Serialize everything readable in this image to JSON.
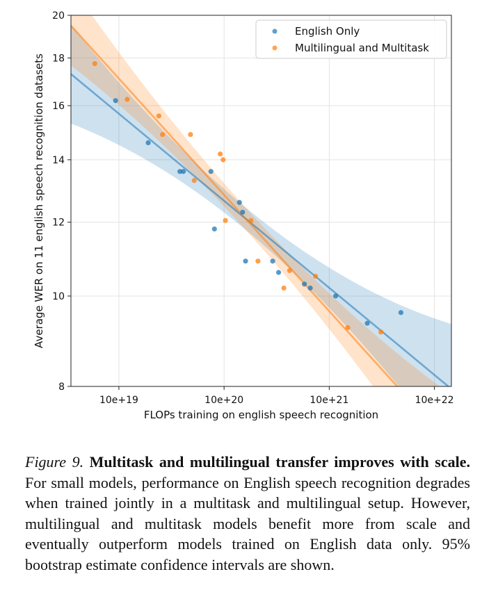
{
  "chart_data": {
    "type": "scatter",
    "title": "",
    "xlabel": "FLOPs training on english speech recognition",
    "ylabel": "Average WER on 11 english speech recognition datasets",
    "x_scale": "log",
    "y_scale": "log",
    "xlim": [
      3.5e+18,
      1.45e+22
    ],
    "ylim": [
      8,
      20
    ],
    "x_ticks": [
      {
        "value": 1e+19,
        "label": "10e+19"
      },
      {
        "value": 1e+20,
        "label": "10e+20"
      },
      {
        "value": 1e+21,
        "label": "10e+21"
      },
      {
        "value": 1e+22,
        "label": "10e+22"
      }
    ],
    "y_ticks": [
      {
        "value": 8,
        "label": "8"
      },
      {
        "value": 10,
        "label": "10"
      },
      {
        "value": 12,
        "label": "12"
      },
      {
        "value": 14,
        "label": "14"
      },
      {
        "value": 16,
        "label": "16"
      },
      {
        "value": 18,
        "label": "18"
      },
      {
        "value": 20,
        "label": "20"
      }
    ],
    "grid": true,
    "legend_position": "top-right",
    "series": [
      {
        "name": "English Only",
        "color": "#1f77b4",
        "points": [
          [
            9.3e+18,
            16.2
          ],
          [
            1.9e+19,
            14.6
          ],
          [
            3.8e+19,
            13.6
          ],
          [
            4.1e+19,
            13.6
          ],
          [
            7.5e+19,
            13.6
          ],
          [
            8.1e+19,
            11.8
          ],
          [
            1.4e+20,
            12.6
          ],
          [
            1.5e+20,
            12.3
          ],
          [
            1.6e+20,
            10.9
          ],
          [
            2.9e+20,
            10.9
          ],
          [
            3.3e+20,
            10.6
          ],
          [
            5.8e+20,
            10.3
          ],
          [
            6.6e+20,
            10.2
          ],
          [
            1.15e+21,
            10.0
          ],
          [
            2.3e+21,
            9.35
          ],
          [
            4.8e+21,
            9.6
          ]
        ],
        "fit": {
          "start": [
            3.5e+18,
            17.3
          ],
          "end": [
            1.45e+22,
            7.95
          ]
        }
      },
      {
        "name": "Multilingual and Multitask",
        "color": "#ff7f0e",
        "points": [
          [
            5.9e+18,
            17.75
          ],
          [
            1.2e+19,
            16.25
          ],
          [
            2.4e+19,
            15.6
          ],
          [
            2.6e+19,
            14.9
          ],
          [
            4.8e+19,
            14.9
          ],
          [
            5.2e+19,
            13.3
          ],
          [
            9.2e+19,
            14.2
          ],
          [
            9.8e+19,
            14.0
          ],
          [
            1.03e+20,
            12.05
          ],
          [
            1.8e+20,
            12.05
          ],
          [
            2.1e+20,
            10.9
          ],
          [
            3.7e+20,
            10.2
          ],
          [
            4.2e+20,
            10.65
          ],
          [
            7.4e+20,
            10.5
          ],
          [
            1.5e+21,
            9.25
          ],
          [
            3.1e+21,
            9.15
          ]
        ],
        "fit": {
          "start": [
            3.5e+18,
            19.5
          ],
          "end": [
            1.45e+22,
            6.9
          ]
        }
      }
    ]
  },
  "caption": {
    "label": "Figure 9.",
    "bold": "Multitask and multilingual transfer improves with scale.",
    "text": "For small models, performance on English speech recognition degrades when trained jointly in a multitask and multilingual setup. However, multilingual and multitask models benefit more from scale and eventually outperform models trained on English data only. 95% bootstrap estimate confidence intervals are shown."
  }
}
